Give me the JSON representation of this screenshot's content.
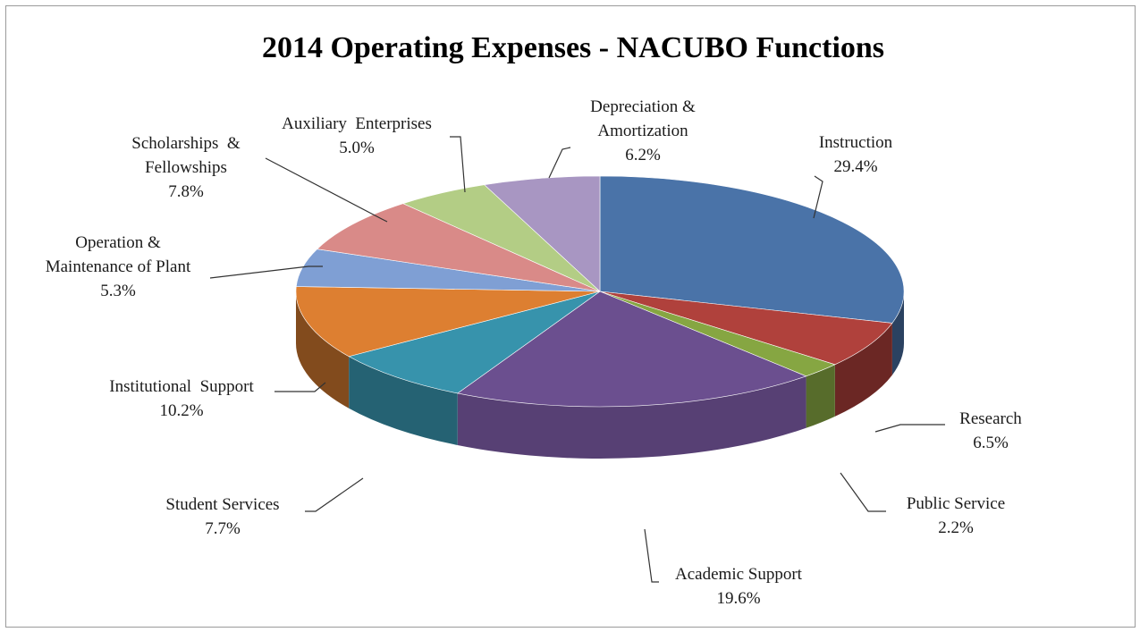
{
  "chart_data": {
    "type": "pie",
    "title": "2014 Operating Expenses - NACUBO Functions",
    "unit": "%",
    "slices": [
      {
        "name_lines": [
          "Instruction"
        ],
        "value": 29.4,
        "value_label": "29.4%",
        "color": "#4a73a8"
      },
      {
        "name_lines": [
          "Research"
        ],
        "value": 6.5,
        "value_label": "6.5%",
        "color": "#b0413c"
      },
      {
        "name_lines": [
          "Public Service"
        ],
        "value": 2.2,
        "value_label": "2.2%",
        "color": "#86a642"
      },
      {
        "name_lines": [
          "Academic Support"
        ],
        "value": 19.6,
        "value_label": "19.6%",
        "color": "#6b4f8f"
      },
      {
        "name_lines": [
          "Student Services"
        ],
        "value": 7.7,
        "value_label": "7.7%",
        "color": "#3793ac"
      },
      {
        "name_lines": [
          "Institutional  Support"
        ],
        "value": 10.2,
        "value_label": "10.2%",
        "color": "#dd7f31"
      },
      {
        "name_lines": [
          "Operation &",
          "Maintenance of Plant"
        ],
        "value": 5.3,
        "value_label": "5.3%",
        "color": "#7f9fd4"
      },
      {
        "name_lines": [
          "Scholarships  &",
          "Fellowships"
        ],
        "value": 7.8,
        "value_label": "7.8%",
        "color": "#d98a88"
      },
      {
        "name_lines": [
          "Auxiliary  Enterprises"
        ],
        "value": 5.0,
        "value_label": "5.0%",
        "color": "#b3cd85"
      },
      {
        "name_lines": [
          "Depreciation &",
          "Amortization"
        ],
        "value": 6.2,
        "value_label": "6.2%",
        "color": "#a896c2"
      }
    ],
    "legend": "none",
    "style": "3d-pie"
  }
}
